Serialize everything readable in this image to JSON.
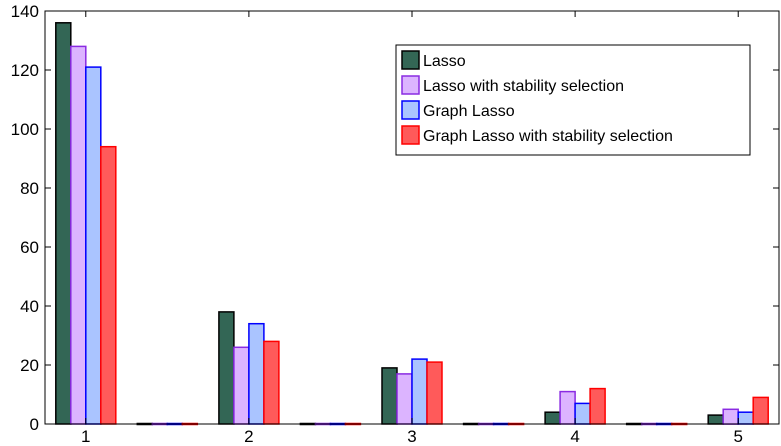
{
  "chart_data": {
    "type": "bar",
    "title": "",
    "xlabel": "",
    "ylabel": "",
    "categories": [
      "1",
      "1.5",
      "2",
      "2.5",
      "3",
      "3.5",
      "4",
      "4.5",
      "5"
    ],
    "x_tick_labels": [
      "1",
      "2",
      "3",
      "4",
      "5"
    ],
    "y_tick_labels": [
      "0",
      "20",
      "40",
      "60",
      "80",
      "100",
      "120",
      "140"
    ],
    "ylim": [
      0,
      140
    ],
    "grid": false,
    "legend_position": "top-right",
    "series": [
      {
        "name": "Lasso",
        "color": "#336655",
        "edge": "#000000",
        "values": [
          136,
          0,
          38,
          0,
          19,
          0,
          4,
          0,
          3
        ]
      },
      {
        "name": "Lasso with stability selection",
        "color": "#dcb4ff",
        "edge": "#8a2be2",
        "values": [
          128,
          0,
          26,
          0,
          17,
          0,
          11,
          0,
          5
        ]
      },
      {
        "name": "Graph Lasso",
        "color": "#aac4ff",
        "edge": "#0000ff",
        "values": [
          121,
          0,
          34,
          0,
          22,
          0,
          7,
          0,
          4
        ]
      },
      {
        "name": "Graph Lasso with stability selection",
        "color": "#ff5a5a",
        "edge": "#ff0000",
        "values": [
          94,
          0,
          28,
          0,
          21,
          0,
          12,
          0,
          9
        ]
      }
    ]
  }
}
